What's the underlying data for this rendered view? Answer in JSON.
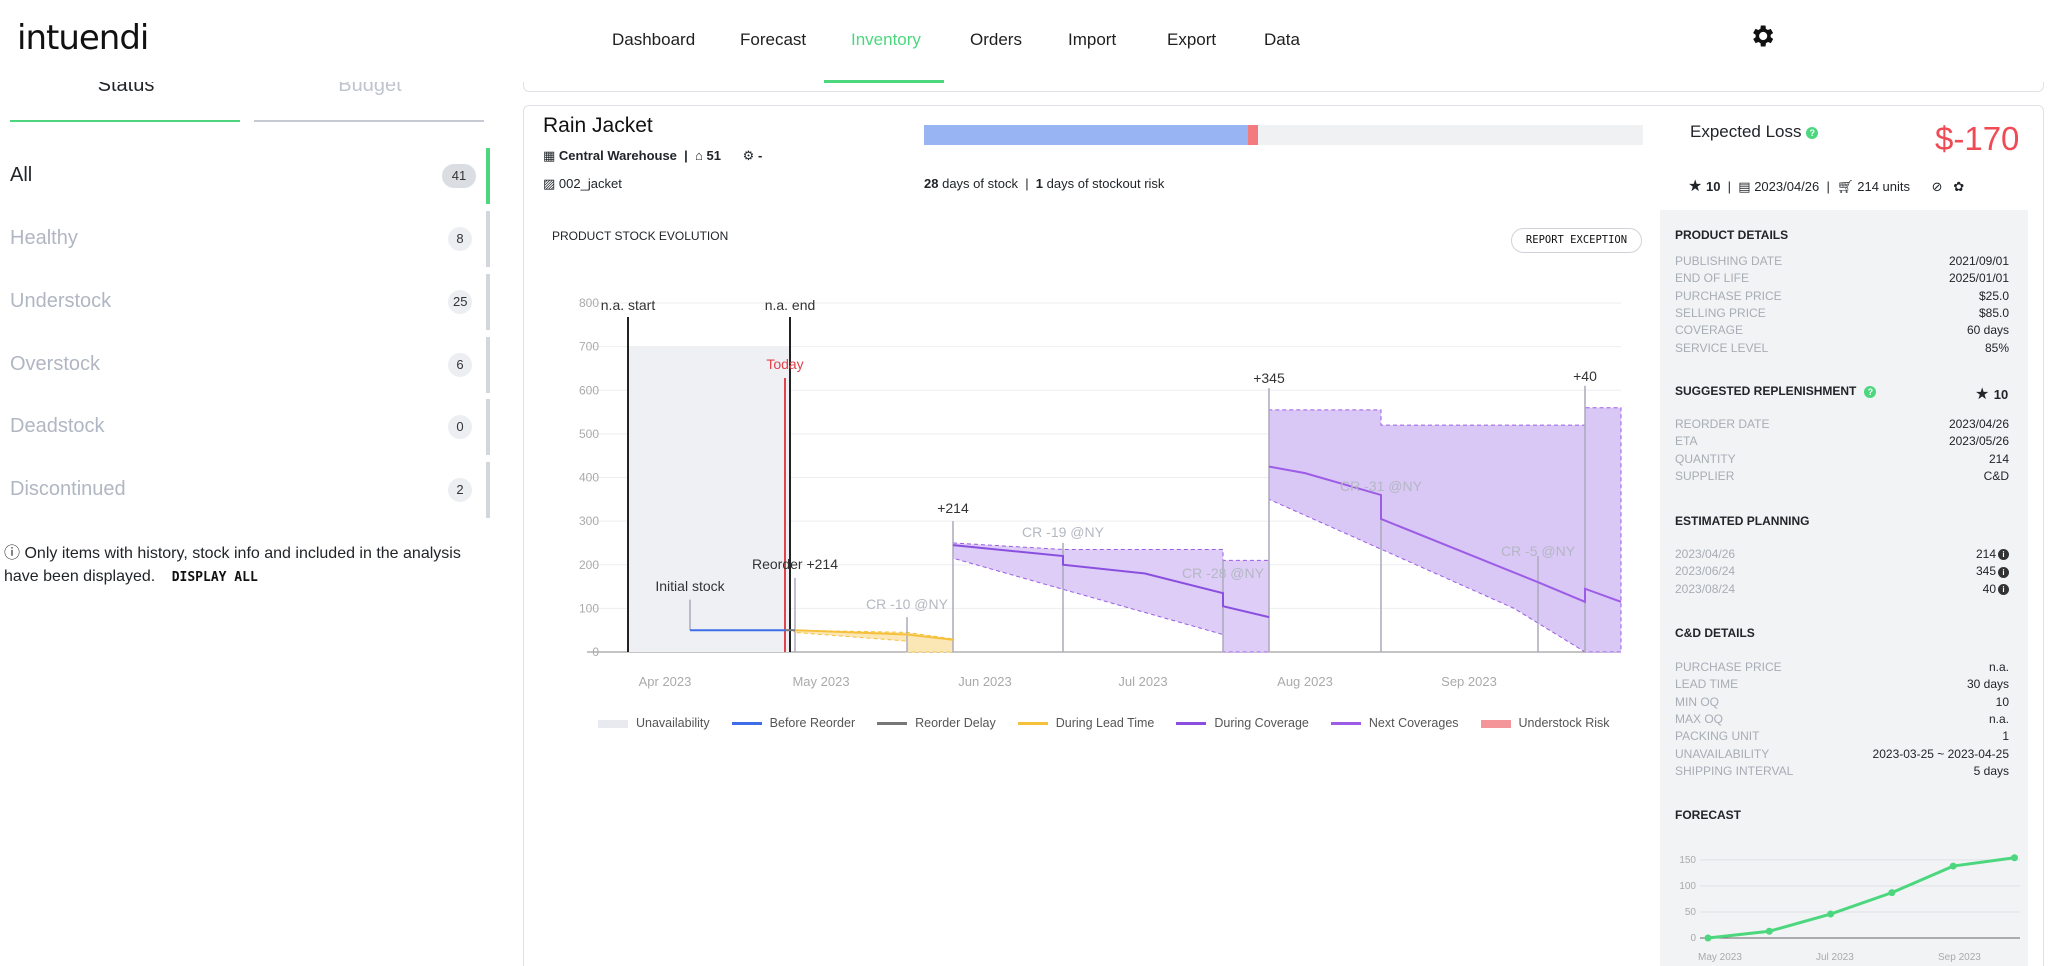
{
  "app": {
    "logo": "intuendi"
  },
  "nav": {
    "items": [
      "Dashboard",
      "Forecast",
      "Inventory",
      "Orders",
      "Import",
      "Export",
      "Data"
    ],
    "active": "Inventory"
  },
  "sidebar": {
    "tabs": {
      "status": "Status",
      "budget": "Budget"
    },
    "statuses": [
      {
        "label": "All",
        "count": "41"
      },
      {
        "label": "Healthy",
        "count": "8"
      },
      {
        "label": "Understock",
        "count": "25"
      },
      {
        "label": "Overstock",
        "count": "6"
      },
      {
        "label": "Deadstock",
        "count": "0"
      },
      {
        "label": "Discontinued",
        "count": "2"
      }
    ],
    "note": "Only items with history, stock info and included in the analysis have been displayed.",
    "display_all": "DISPLAY ALL"
  },
  "product": {
    "name": "Rain Jacket",
    "warehouse": "Central Warehouse",
    "stock_qty": "51",
    "supplier_dash": "-",
    "sku": "002_jacket",
    "stock_bar": {
      "stock_fraction": 0.45,
      "risk_fraction": 0.015
    },
    "days_of_stock": "28",
    "days_of_stock_label": "days of stock",
    "stockout_days": "1",
    "stockout_label": "days of stockout risk",
    "expected_loss_label": "Expected Loss",
    "expected_loss_value": "$-170",
    "priority": "10",
    "reorder_date": "2023/04/26",
    "units": "214 units"
  },
  "chart_section": {
    "title": "PRODUCT STOCK EVOLUTION",
    "report_button": "REPORT EXCEPTION"
  },
  "chart_data": {
    "type": "line",
    "ylim": [
      0,
      800
    ],
    "yticks": [
      "0",
      "100",
      "200",
      "300",
      "400",
      "500",
      "600",
      "700",
      "800"
    ],
    "xticks": [
      "Apr 2023",
      "May 2023",
      "Jun 2023",
      "Jul 2023",
      "Aug 2023",
      "Sep 2023"
    ],
    "annotations": {
      "na_start": "n.a. start",
      "na_end": "n.a. end",
      "today": "Today",
      "initial_stock": "Initial stock",
      "reorder": "Reorder +214",
      "arrivals": [
        "+214",
        "+345",
        "+40"
      ],
      "customer_requests": [
        "CR -10 @NY",
        "CR -19 @NY",
        "CR -28 @NY",
        "CR -31 @NY",
        "CR -5 @NY"
      ]
    },
    "series": [
      {
        "name": "Unavailability",
        "color": "#e8eaef"
      },
      {
        "name": "Before Reorder",
        "color": "#3d6ee8"
      },
      {
        "name": "Reorder Delay",
        "color": "#777777"
      },
      {
        "name": "During Lead Time",
        "color": "#f5c13d"
      },
      {
        "name": "During Coverage",
        "color": "#8b4fe0"
      },
      {
        "name": "Next Coverages",
        "color": "#9c5ce6"
      },
      {
        "name": "Understock Risk",
        "color": "#f4959a"
      }
    ]
  },
  "details": {
    "product_details": {
      "title": "PRODUCT DETAILS",
      "rows": [
        {
          "k": "PUBLISHING DATE",
          "v": "2021/09/01"
        },
        {
          "k": "END OF LIFE",
          "v": "2025/01/01"
        },
        {
          "k": "PURCHASE PRICE",
          "v": "$25.0"
        },
        {
          "k": "SELLING PRICE",
          "v": "$85.0"
        },
        {
          "k": "COVERAGE",
          "v": "60 days"
        },
        {
          "k": "SERVICE LEVEL",
          "v": "85%"
        }
      ]
    },
    "suggested": {
      "title": "SUGGESTED REPLENISHMENT",
      "priority": "10",
      "rows": [
        {
          "k": "REORDER DATE",
          "v": "2023/04/26"
        },
        {
          "k": "ETA",
          "v": "2023/05/26"
        },
        {
          "k": "QUANTITY",
          "v": "214"
        },
        {
          "k": "SUPPLIER",
          "v": "C&D"
        }
      ]
    },
    "planning": {
      "title": "ESTIMATED PLANNING",
      "rows": [
        {
          "k": "2023/04/26",
          "v": "214"
        },
        {
          "k": "2023/06/24",
          "v": "345"
        },
        {
          "k": "2023/08/24",
          "v": "40"
        }
      ]
    },
    "supplier": {
      "title": "C&D DETAILS",
      "rows": [
        {
          "k": "PURCHASE PRICE",
          "v": "n.a."
        },
        {
          "k": "LEAD TIME",
          "v": "30 days"
        },
        {
          "k": "MIN OQ",
          "v": "10"
        },
        {
          "k": "MAX OQ",
          "v": "n.a."
        },
        {
          "k": "PACKING UNIT",
          "v": "1"
        },
        {
          "k": "UNAVAILABILITY",
          "v": "2023-03-25 ~ 2023-04-25"
        },
        {
          "k": "SHIPPING INTERVAL",
          "v": "5 days"
        }
      ]
    },
    "forecast": {
      "title": "FORECAST",
      "yticks": [
        "0",
        "50",
        "100",
        "150"
      ],
      "xticks": [
        "May 2023",
        "Jul 2023",
        "Sep 2023"
      ],
      "values": [
        0,
        13,
        46,
        87,
        138,
        154
      ]
    }
  },
  "colors": {
    "accent": "#4cd77f",
    "loss": "#f04a54",
    "coverage": "#8b4fe0"
  }
}
